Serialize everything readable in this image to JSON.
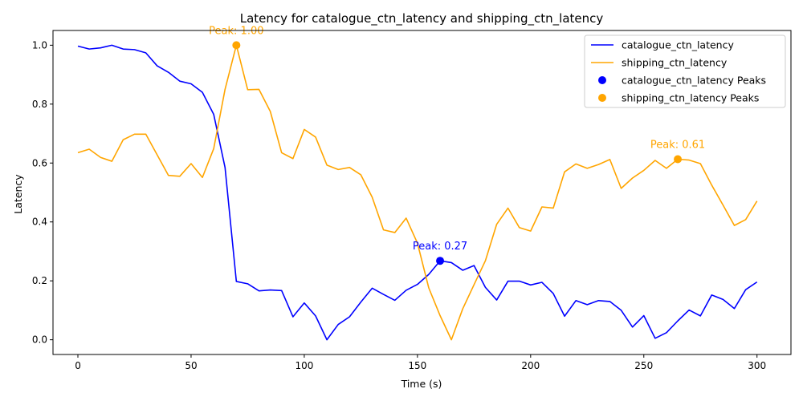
{
  "chart_data": {
    "type": "line",
    "title": "Latency for catalogue_ctn_latency and shipping_ctn_latency",
    "xlabel": "Time (s)",
    "ylabel": "Latency",
    "xlim": [
      -11,
      315
    ],
    "ylim": [
      -0.05,
      1.05
    ],
    "xticks": [
      0,
      50,
      100,
      150,
      200,
      250,
      300
    ],
    "yticks": [
      0.0,
      0.2,
      0.4,
      0.6,
      0.8,
      1.0
    ],
    "grid": false,
    "legend_position": "top-right",
    "x": [
      0,
      5,
      10,
      15,
      20,
      25,
      30,
      35,
      40,
      45,
      50,
      55,
      60,
      65,
      70,
      75,
      80,
      85,
      90,
      95,
      100,
      105,
      110,
      115,
      120,
      125,
      130,
      135,
      140,
      145,
      150,
      155,
      160,
      165,
      170,
      175,
      180,
      185,
      190,
      195,
      200,
      205,
      210,
      215,
      220,
      225,
      230,
      235,
      240,
      245,
      250,
      255,
      260,
      265,
      270,
      275,
      280,
      285,
      290,
      295,
      300
    ],
    "series": [
      {
        "name": "catalogue_ctn_latency",
        "color": "#0000ff",
        "values": [
          0.997,
          0.987,
          0.991,
          1.0,
          0.987,
          0.985,
          0.974,
          0.93,
          0.908,
          0.878,
          0.869,
          0.84,
          0.765,
          0.585,
          0.198,
          0.19,
          0.166,
          0.169,
          0.167,
          0.078,
          0.125,
          0.081,
          0.0,
          0.052,
          0.078,
          0.128,
          0.175,
          0.154,
          0.134,
          0.168,
          0.188,
          0.222,
          0.268,
          0.262,
          0.236,
          0.252,
          0.178,
          0.135,
          0.199,
          0.199,
          0.186,
          0.195,
          0.157,
          0.08,
          0.133,
          0.119,
          0.133,
          0.13,
          0.1,
          0.043,
          0.082,
          0.005,
          0.024,
          0.064,
          0.101,
          0.081,
          0.152,
          0.137,
          0.106,
          0.17,
          0.196
        ]
      },
      {
        "name": "shipping_ctn_latency",
        "color": "#ffa500",
        "values": [
          0.635,
          0.647,
          0.619,
          0.606,
          0.679,
          0.698,
          0.698,
          0.628,
          0.558,
          0.555,
          0.598,
          0.551,
          0.649,
          0.85,
          1.0,
          0.849,
          0.85,
          0.775,
          0.635,
          0.615,
          0.714,
          0.688,
          0.593,
          0.578,
          0.585,
          0.56,
          0.484,
          0.373,
          0.364,
          0.413,
          0.328,
          0.176,
          0.082,
          0.0,
          0.105,
          0.187,
          0.268,
          0.392,
          0.447,
          0.381,
          0.369,
          0.451,
          0.447,
          0.57,
          0.597,
          0.582,
          0.595,
          0.612,
          0.514,
          0.549,
          0.575,
          0.609,
          0.582,
          0.613,
          0.61,
          0.598,
          0.525,
          0.457,
          0.388,
          0.408,
          0.471
        ]
      }
    ],
    "peaks": [
      {
        "name": "catalogue_ctn_latency Peaks",
        "color": "#0000ff",
        "x": 160,
        "y": 0.268,
        "label": "Peak: 0.27"
      },
      {
        "name": "shipping_ctn_latency Peaks",
        "color": "#ffa500",
        "x": 70,
        "y": 1.0,
        "label": "Peak: 1.00"
      },
      {
        "name": "shipping_ctn_latency Peaks",
        "color": "#ffa500",
        "x": 265,
        "y": 0.613,
        "label": "Peak: 0.61"
      }
    ],
    "legend": [
      {
        "label": "catalogue_ctn_latency",
        "kind": "line",
        "color": "#0000ff"
      },
      {
        "label": "shipping_ctn_latency",
        "kind": "line",
        "color": "#ffa500"
      },
      {
        "label": "catalogue_ctn_latency Peaks",
        "kind": "marker",
        "color": "#0000ff"
      },
      {
        "label": "shipping_ctn_latency Peaks",
        "kind": "marker",
        "color": "#ffa500"
      }
    ]
  }
}
